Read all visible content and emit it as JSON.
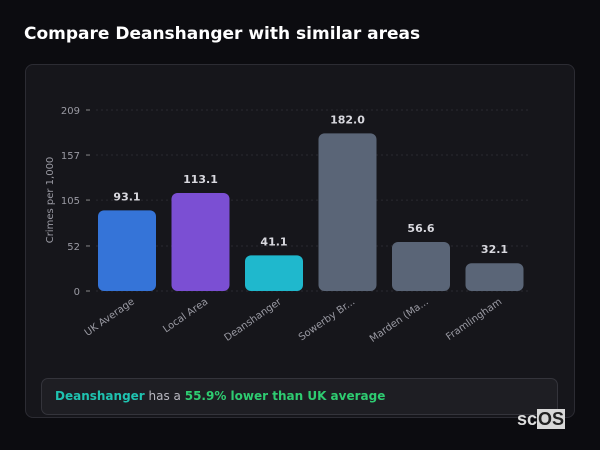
{
  "title": "Compare Deanshanger with similar areas",
  "chart_data": {
    "type": "bar",
    "categories": [
      "UK Average",
      "Local Area",
      "Deanshanger",
      "Sowerby Br...",
      "Marden (Ma...",
      "Framlingham"
    ],
    "values": [
      93.1,
      113.1,
      41.1,
      182.0,
      56.6,
      32.1
    ],
    "data_labels": [
      "93.1",
      "113.1",
      "41.1",
      "182.0",
      "56.6",
      "32.1"
    ],
    "colors": [
      "#3574d8",
      "#7b4fd3",
      "#1fb8cd",
      "#5a6577",
      "#5a6577",
      "#5a6577"
    ],
    "ylabel": "Crimes per 1,000",
    "xlabel": "",
    "yticks": [
      0,
      52,
      105,
      157,
      209
    ],
    "ylim": [
      0,
      209
    ],
    "grid": true
  },
  "summary": {
    "place": "Deanshanger",
    "middle": " has a ",
    "result": "55.9% lower than UK average"
  },
  "logo": {
    "text": "scOS"
  }
}
